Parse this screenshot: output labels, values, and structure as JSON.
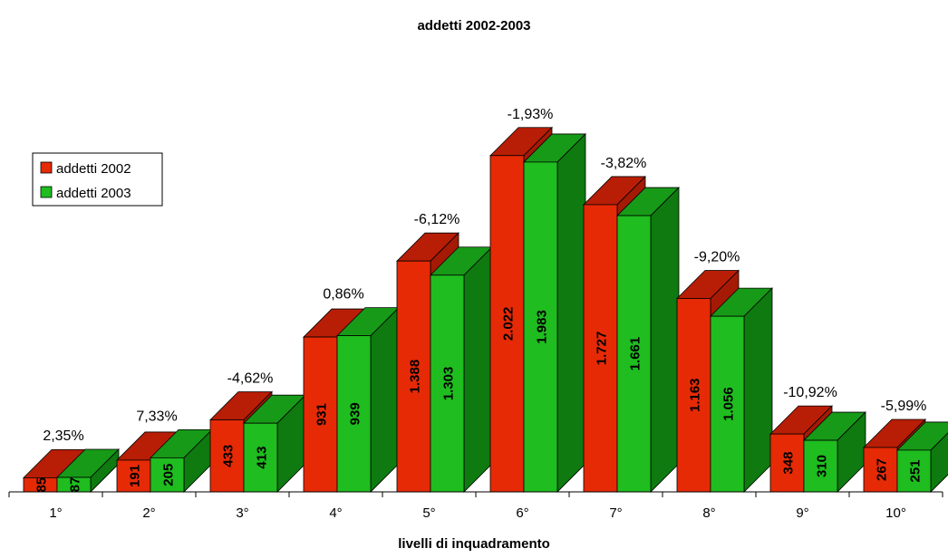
{
  "chart_data": {
    "type": "bar",
    "title": "addetti 2002-2003",
    "xlabel": "livelli di inquadramento",
    "ylabel": "",
    "categories": [
      "1°",
      "2°",
      "3°",
      "4°",
      "5°",
      "6°",
      "7°",
      "8°",
      "9°",
      "10°"
    ],
    "series": [
      {
        "name": "addetti 2002",
        "values": [
          85,
          191,
          433,
          931,
          1388,
          2022,
          1727,
          1163,
          348,
          267
        ],
        "labels": [
          "85",
          "191",
          "433",
          "931",
          "1.388",
          "2.022",
          "1.727",
          "1.163",
          "348",
          "267"
        ],
        "color": "#e62a06",
        "top_color": "#b81e06",
        "side_color": "#a51a05"
      },
      {
        "name": "addetti 2003",
        "values": [
          87,
          205,
          413,
          939,
          1303,
          1983,
          1661,
          1056,
          310,
          251
        ],
        "labels": [
          "87",
          "205",
          "413",
          "939",
          "1.303",
          "1.983",
          "1.661",
          "1.056",
          "310",
          "251"
        ],
        "color": "#1fbd1f",
        "top_color": "#179a17",
        "side_color": "#0e7a10"
      }
    ],
    "annotations": [
      "2,35%",
      "7,33%",
      "-4,62%",
      "0,86%",
      "-6,12%",
      "-1,93%",
      "-3,82%",
      "-9,20%",
      "-10,92%",
      "-5,99%"
    ],
    "ylim": [
      0,
      2300
    ],
    "grid": false,
    "legend": "left",
    "view": "3d"
  }
}
